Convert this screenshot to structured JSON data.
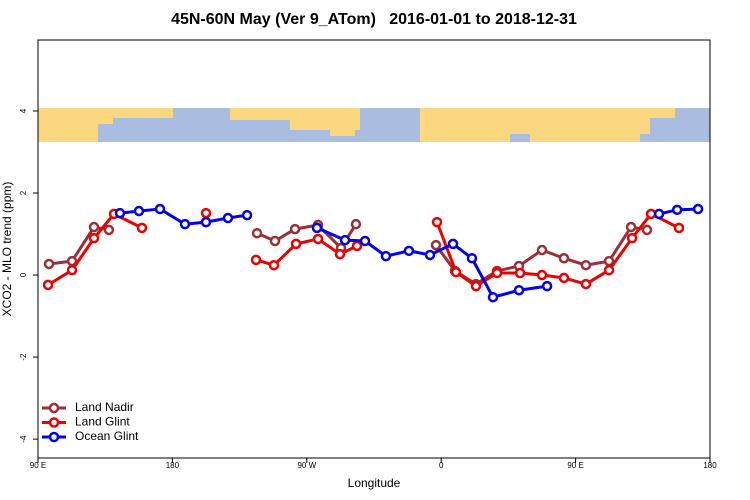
{
  "chart_data": {
    "type": "line",
    "title": "45N-60N May (Ver 9_ATom)   2016-01-01 to 2018-12-31",
    "x_label": "Longitude",
    "y_label": "XCO2 - MLO trend (ppm)",
    "xlim": [
      90,
      540
    ],
    "xticks": [
      {
        "value": 90,
        "label": "90 E"
      },
      {
        "value": 180,
        "label": "180"
      },
      {
        "value": 270,
        "label": "90 W"
      },
      {
        "value": 360,
        "label": "0"
      },
      {
        "value": 450,
        "label": "90 E"
      },
      {
        "value": 540,
        "label": "180"
      }
    ],
    "ylim": [
      -4.46,
      5.73
    ],
    "yticks": [
      -4,
      -2,
      0,
      2,
      4
    ],
    "legend": "bottom-left",
    "series": [
      {
        "name": "Land Nadir",
        "color": "#9c2f36",
        "x": [
          97.4,
          112.8,
          127.5,
          137.5,
          null,
          236.7,
          248.7,
          262.1,
          277.5,
          292.9,
          302.9,
          null,
          356.5,
          369.2,
          383.3,
          397.4,
          412.1,
          427.5,
          442.2,
          456.9,
          472.4,
          487.1,
          497.8
        ],
        "values": [
          0.27,
          0.34,
          1.17,
          1.1,
          null,
          1.02,
          0.83,
          1.12,
          1.22,
          0.66,
          1.24,
          null,
          0.73,
          0.1,
          -0.22,
          0.1,
          0.22,
          0.61,
          0.41,
          0.24,
          0.34,
          1.17,
          1.1
        ]
      },
      {
        "name": "Land Glint",
        "color": "#ee0000",
        "x": [
          96.7,
          112.8,
          127.5,
          140.9,
          159.6,
          null,
          202.5,
          null,
          236.0,
          248.0,
          262.8,
          277.5,
          292.2,
          303.6,
          null,
          357.2,
          369.9,
          383.3,
          397.4,
          412.8,
          427.5,
          442.2,
          456.9,
          472.4,
          487.8,
          500.5,
          519.2
        ],
        "values": [
          -0.24,
          0.12,
          0.9,
          1.49,
          1.15,
          null,
          1.51,
          null,
          0.37,
          0.24,
          0.76,
          0.88,
          0.51,
          0.71,
          null,
          1.29,
          0.07,
          -0.27,
          0.05,
          0.05,
          0.0,
          -0.07,
          -0.22,
          0.12,
          0.9,
          1.49,
          1.15
        ]
      },
      {
        "name": "Ocean Glint",
        "color": "#0000ee",
        "x": [
          144.9,
          157.6,
          171.7,
          188.4,
          202.5,
          217.2,
          230.0,
          null,
          276.8,
          295.6,
          309.0,
          323.0,
          338.4,
          352.5,
          367.9,
          380.6,
          394.7,
          412.1,
          430.9,
          null,
          505.9,
          518.0,
          532.0
        ],
        "values": [
          1.51,
          1.56,
          1.61,
          1.24,
          1.29,
          1.39,
          1.46,
          null,
          1.15,
          0.85,
          0.83,
          0.46,
          0.59,
          0.49,
          0.76,
          0.41,
          -0.54,
          -0.37,
          -0.27,
          null,
          1.49,
          1.59,
          1.61
        ]
      }
    ]
  }
}
